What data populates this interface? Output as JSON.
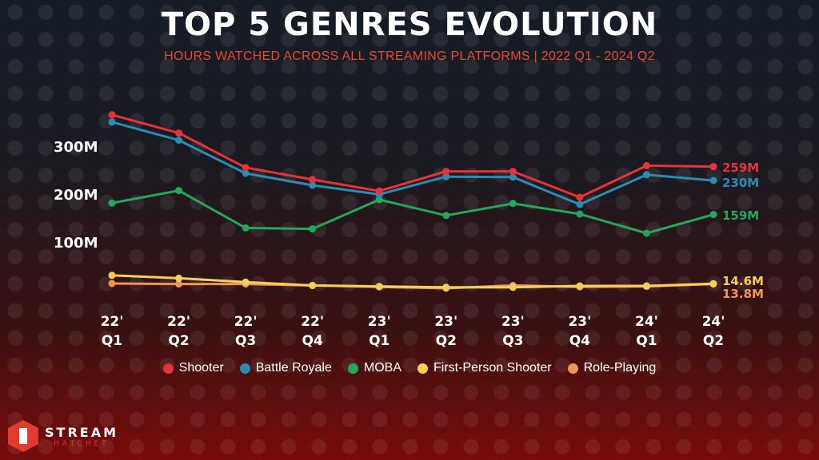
{
  "title": "TOP 5 GENRES EVOLUTION",
  "subtitle": "HOURS WATCHED ACROSS ALL STREAMING PLATFORMS | 2022 Q1 - 2024 Q2",
  "brand": {
    "name": "STREAM",
    "sub": "HATCHET",
    "color": "#e23b2e"
  },
  "chart_data": {
    "type": "line",
    "categories": [
      [
        "22'",
        "Q1"
      ],
      [
        "22'",
        "Q2"
      ],
      [
        "22'",
        "Q3"
      ],
      [
        "22'",
        "Q4"
      ],
      [
        "23'",
        "Q1"
      ],
      [
        "23'",
        "Q2"
      ],
      [
        "23'",
        "Q3"
      ],
      [
        "23'",
        "Q4"
      ],
      [
        "24'",
        "Q1"
      ],
      [
        "24'",
        "Q2"
      ]
    ],
    "y_ticks": [
      {
        "value": 100,
        "label": "100M"
      },
      {
        "value": 200,
        "label": "200M"
      },
      {
        "value": 300,
        "label": "300M"
      }
    ],
    "ylim": [
      0,
      420
    ],
    "grid": false,
    "legend_position": "bottom",
    "series": [
      {
        "name": "Shooter",
        "color": "#e8323a",
        "values": [
          367,
          329,
          257,
          232,
          208,
          249,
          249,
          195,
          261,
          259
        ],
        "end_label": "259M"
      },
      {
        "name": "Battle Royale",
        "color": "#2b8cb3",
        "values": [
          352,
          314,
          245,
          220,
          201,
          238,
          237,
          180,
          242,
          230
        ],
        "end_label": "230M"
      },
      {
        "name": "MOBA",
        "color": "#22a859",
        "values": [
          183,
          209,
          131,
          129,
          190,
          157,
          182,
          160,
          120,
          159
        ],
        "end_label": "159M"
      },
      {
        "name": "First-Person Shooter",
        "color": "#f5cf5a",
        "values": [
          32,
          26,
          18,
          11,
          9,
          7,
          7,
          10,
          10,
          14.6
        ],
        "end_label": "14.6M"
      },
      {
        "name": "Role-Playing",
        "color": "#f0955a",
        "values": [
          15,
          14,
          14,
          11,
          8,
          5,
          11,
          8,
          9,
          13.8
        ],
        "end_label": "13.8M"
      }
    ]
  }
}
